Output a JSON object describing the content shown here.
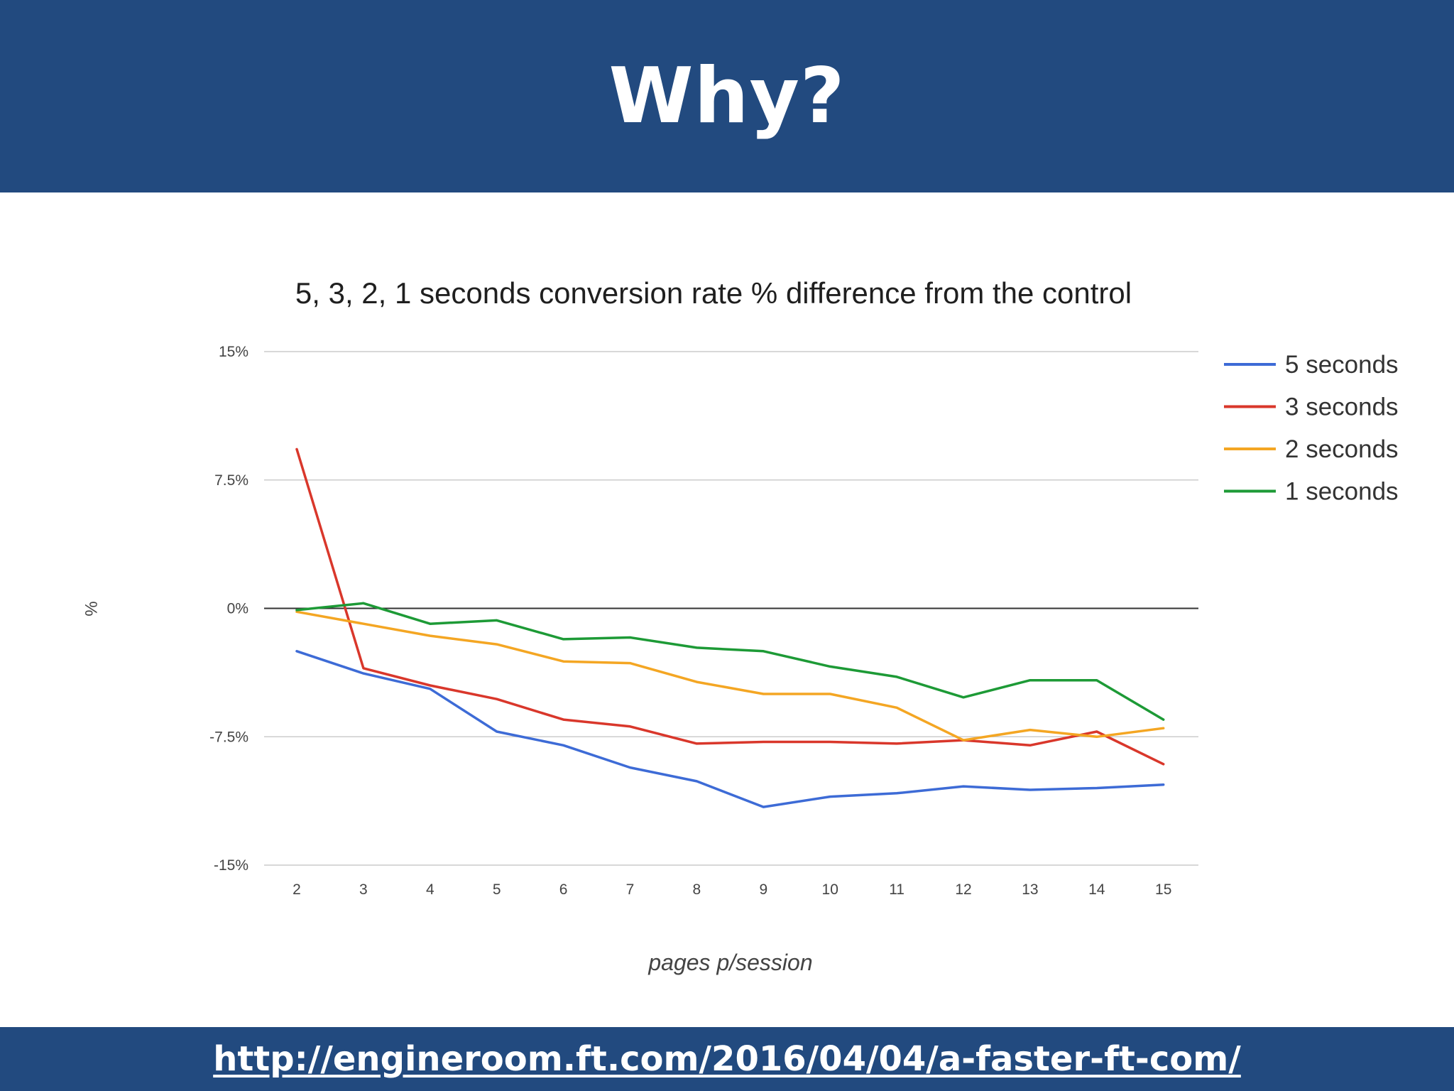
{
  "slide": {
    "title": "Why?",
    "source_link": "http://engineroom.ft.com/2016/04/04/a-faster-ft-com/",
    "band_color": "#224a7f"
  },
  "chart_data": {
    "type": "line",
    "title": "5, 3, 2, 1 seconds conversion rate % difference from the control",
    "xlabel": "pages p/session",
    "ylabel": "%",
    "x": [
      2,
      3,
      4,
      5,
      6,
      7,
      8,
      9,
      10,
      11,
      12,
      13,
      14,
      15
    ],
    "y_ticks": [
      {
        "value": 15,
        "label": "15%"
      },
      {
        "value": 7.5,
        "label": "7.5%"
      },
      {
        "value": 0,
        "label": "0%"
      },
      {
        "value": -7.5,
        "label": "-7.5%"
      },
      {
        "value": -15,
        "label": "-15%"
      }
    ],
    "ylim": [
      -15,
      15
    ],
    "grid": true,
    "legend_position": "right",
    "series": [
      {
        "name": "5 seconds",
        "color": "#3d6bd6",
        "values": [
          -2.5,
          -3.8,
          -4.7,
          -7.2,
          -8.0,
          -9.3,
          -10.1,
          -11.6,
          -11.0,
          -10.8,
          -10.4,
          -10.6,
          -10.5,
          -10.3
        ]
      },
      {
        "name": "3 seconds",
        "color": "#d9372b",
        "values": [
          9.3,
          -3.5,
          -4.5,
          -5.3,
          -6.5,
          -6.9,
          -7.9,
          -7.8,
          -7.8,
          -7.9,
          -7.7,
          -8.0,
          -7.2,
          -9.1
        ]
      },
      {
        "name": "2 seconds",
        "color": "#f4a623",
        "values": [
          -0.2,
          -0.9,
          -1.6,
          -2.1,
          -3.1,
          -3.2,
          -4.3,
          -5.0,
          -5.0,
          -5.8,
          -7.7,
          -7.1,
          -7.5,
          -7.0
        ]
      },
      {
        "name": "1 seconds",
        "color": "#1d9a36",
        "values": [
          -0.1,
          0.3,
          -0.9,
          -0.7,
          -1.8,
          -1.7,
          -2.3,
          -2.5,
          -3.4,
          -4.0,
          -5.2,
          -4.2,
          -4.2,
          -6.5
        ]
      }
    ]
  }
}
